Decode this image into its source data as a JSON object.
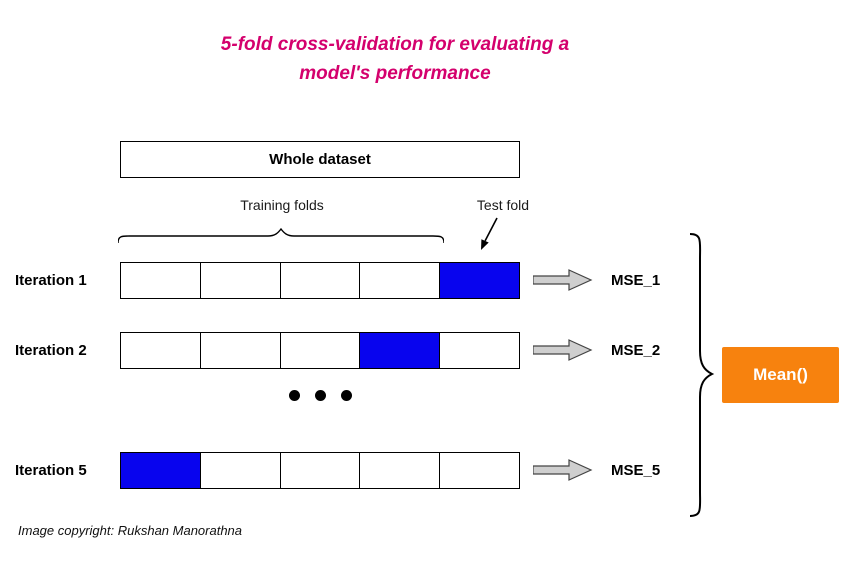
{
  "title": {
    "line1": "5-fold cross-validation for evaluating a",
    "line2": "model's performance",
    "color": "#d4006d"
  },
  "dataset_box": {
    "label": "Whole dataset"
  },
  "annotations": {
    "training_folds": "Training folds",
    "test_fold": "Test fold"
  },
  "num_folds": 5,
  "fold_colors": {
    "train": "#ffffff",
    "test": "#0804ee"
  },
  "iterations": [
    {
      "label": "Iteration 1",
      "test_fold_index": 4,
      "mse_label": "MSE_1"
    },
    {
      "label": "Iteration 2",
      "test_fold_index": 3,
      "mse_label": "MSE_2"
    },
    {
      "label": "Iteration 5",
      "test_fold_index": 0,
      "mse_label": "MSE_5"
    }
  ],
  "aggregate": {
    "label": "Mean()",
    "color": "#f7820e"
  },
  "footer": "Image copyright: Rukshan Manorathna"
}
